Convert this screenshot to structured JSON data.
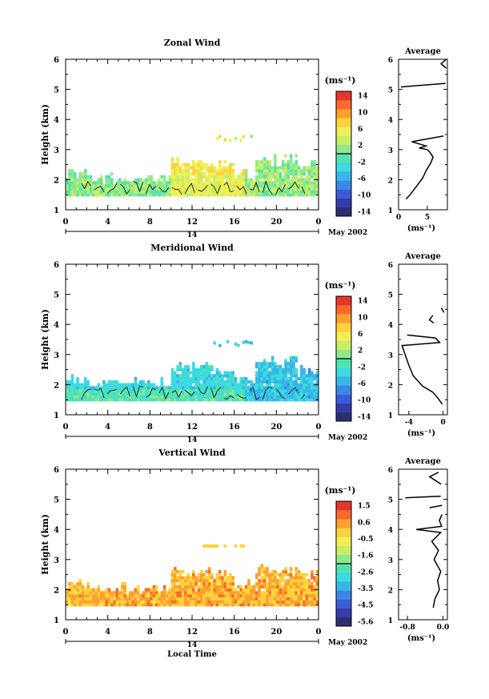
{
  "chart_data": [
    {
      "type": "heatmap",
      "title": "Zonal Wind",
      "ylabel": "Height (km)",
      "xlabel": "",
      "date_label": "May 2002",
      "day_label": "14",
      "x_ticks": [
        "0",
        "4",
        "8",
        "12",
        "16",
        "20",
        "0"
      ],
      "y_ticks": [
        "1",
        "2",
        "3",
        "4",
        "5",
        "6"
      ],
      "ylim": [
        1,
        6
      ],
      "colorbar": {
        "unit": "(ms⁻¹)",
        "ticks": [
          "14",
          "10",
          "6",
          "2",
          "-2",
          "-6",
          "-10",
          "-14"
        ],
        "range": [
          -16,
          16
        ]
      },
      "profile": {
        "title": "Average",
        "xlabel": "(ms⁻¹)",
        "x_ticks": [
          "0",
          "5"
        ],
        "xlim": [
          0,
          8.5
        ],
        "points": [
          [
            1.3,
            1.35
          ],
          [
            2.0,
            1.5
          ],
          [
            3.0,
            1.75
          ],
          [
            4.2,
            2.05
          ],
          [
            4.8,
            2.3
          ],
          [
            5.6,
            2.55
          ],
          [
            6.0,
            2.75
          ],
          [
            5.5,
            2.9
          ],
          [
            5.0,
            3.0
          ],
          [
            3.6,
            3.05
          ],
          [
            4.8,
            3.12
          ],
          [
            3.4,
            3.2
          ],
          [
            2.3,
            3.26
          ],
          [
            7.8,
            3.45
          ]
        ],
        "segments": [
          [
            [
              0.4,
              5.08
            ],
            [
              8.2,
              5.2
            ]
          ],
          [
            [
              8.3,
              6.0
            ],
            [
              7.4,
              5.85
            ],
            [
              8.3,
              5.7
            ]
          ]
        ]
      }
    },
    {
      "type": "heatmap",
      "title": "Meridional Wind",
      "ylabel": "Height (km)",
      "xlabel": "",
      "date_label": "May 2002",
      "day_label": "14",
      "x_ticks": [
        "0",
        "4",
        "8",
        "12",
        "16",
        "20",
        "0"
      ],
      "y_ticks": [
        "1",
        "2",
        "3",
        "4",
        "5",
        "6"
      ],
      "ylim": [
        1,
        6
      ],
      "colorbar": {
        "unit": "(ms⁻¹)",
        "ticks": [
          "14",
          "10",
          "6",
          "2",
          "-2",
          "-6",
          "-10",
          "-14"
        ],
        "range": [
          -16,
          16
        ]
      },
      "profile": {
        "title": "Average",
        "xlabel": "(ms⁻¹)",
        "x_ticks": [
          "-4",
          "0"
        ],
        "xlim": [
          -5.2,
          0.5
        ],
        "points": [
          [
            -0.1,
            1.35
          ],
          [
            -0.6,
            1.55
          ],
          [
            -1.2,
            1.75
          ],
          [
            -2.4,
            1.95
          ],
          [
            -3.5,
            2.3
          ],
          [
            -4.0,
            2.65
          ],
          [
            -4.8,
            3.3
          ],
          [
            -3.8,
            3.32
          ],
          [
            -0.4,
            3.4
          ],
          [
            -0.9,
            3.55
          ],
          [
            -4.2,
            3.65
          ]
        ],
        "segments": [
          [
            [
              -1.2,
              4.3
            ],
            [
              -1.6,
              4.15
            ],
            [
              -1.1,
              4.05
            ]
          ],
          [
            [
              -0.2,
              4.55
            ],
            [
              0.1,
              4.4
            ]
          ]
        ]
      }
    },
    {
      "type": "heatmap",
      "title": "Vertical Wind",
      "ylabel": "Height (km)",
      "xlabel": "Local Time",
      "date_label": "May 2002",
      "day_label": "14",
      "x_ticks": [
        "0",
        "4",
        "8",
        "12",
        "16",
        "20",
        "0"
      ],
      "y_ticks": [
        "1",
        "2",
        "3",
        "4",
        "5",
        "6"
      ],
      "ylim": [
        1,
        6
      ],
      "colorbar": {
        "unit": "(ms⁻¹)",
        "ticks": [
          "1.5",
          "0.6",
          "-0.5",
          "-1.6",
          "-2.6",
          "-3.5",
          "-4.5",
          "-5.6"
        ],
        "range": [
          -6,
          2
        ]
      },
      "profile": {
        "title": "Average",
        "xlabel": "(ms⁻¹)",
        "x_ticks": [
          "-0.8",
          "0.0"
        ],
        "xlim": [
          -1.0,
          0.1
        ],
        "points": [
          [
            -0.22,
            1.4
          ],
          [
            -0.18,
            1.7
          ],
          [
            -0.08,
            2.0
          ],
          [
            -0.12,
            2.3
          ],
          [
            -0.05,
            2.6
          ],
          [
            -0.2,
            3.0
          ],
          [
            -0.1,
            3.3
          ],
          [
            -0.25,
            3.6
          ],
          [
            -0.05,
            3.9
          ],
          [
            -0.6,
            4.0
          ],
          [
            -0.03,
            4.1
          ],
          [
            -0.08,
            4.3
          ],
          [
            -0.02,
            4.5
          ]
        ],
        "segments": [
          [
            [
              -0.3,
              4.72
            ],
            [
              -0.02,
              4.8
            ]
          ],
          [
            [
              -0.85,
              5.05
            ],
            [
              -0.05,
              5.1
            ]
          ],
          [
            [
              -0.04,
              5.5
            ],
            [
              -0.3,
              5.75
            ],
            [
              -0.1,
              5.9
            ]
          ]
        ]
      }
    }
  ]
}
